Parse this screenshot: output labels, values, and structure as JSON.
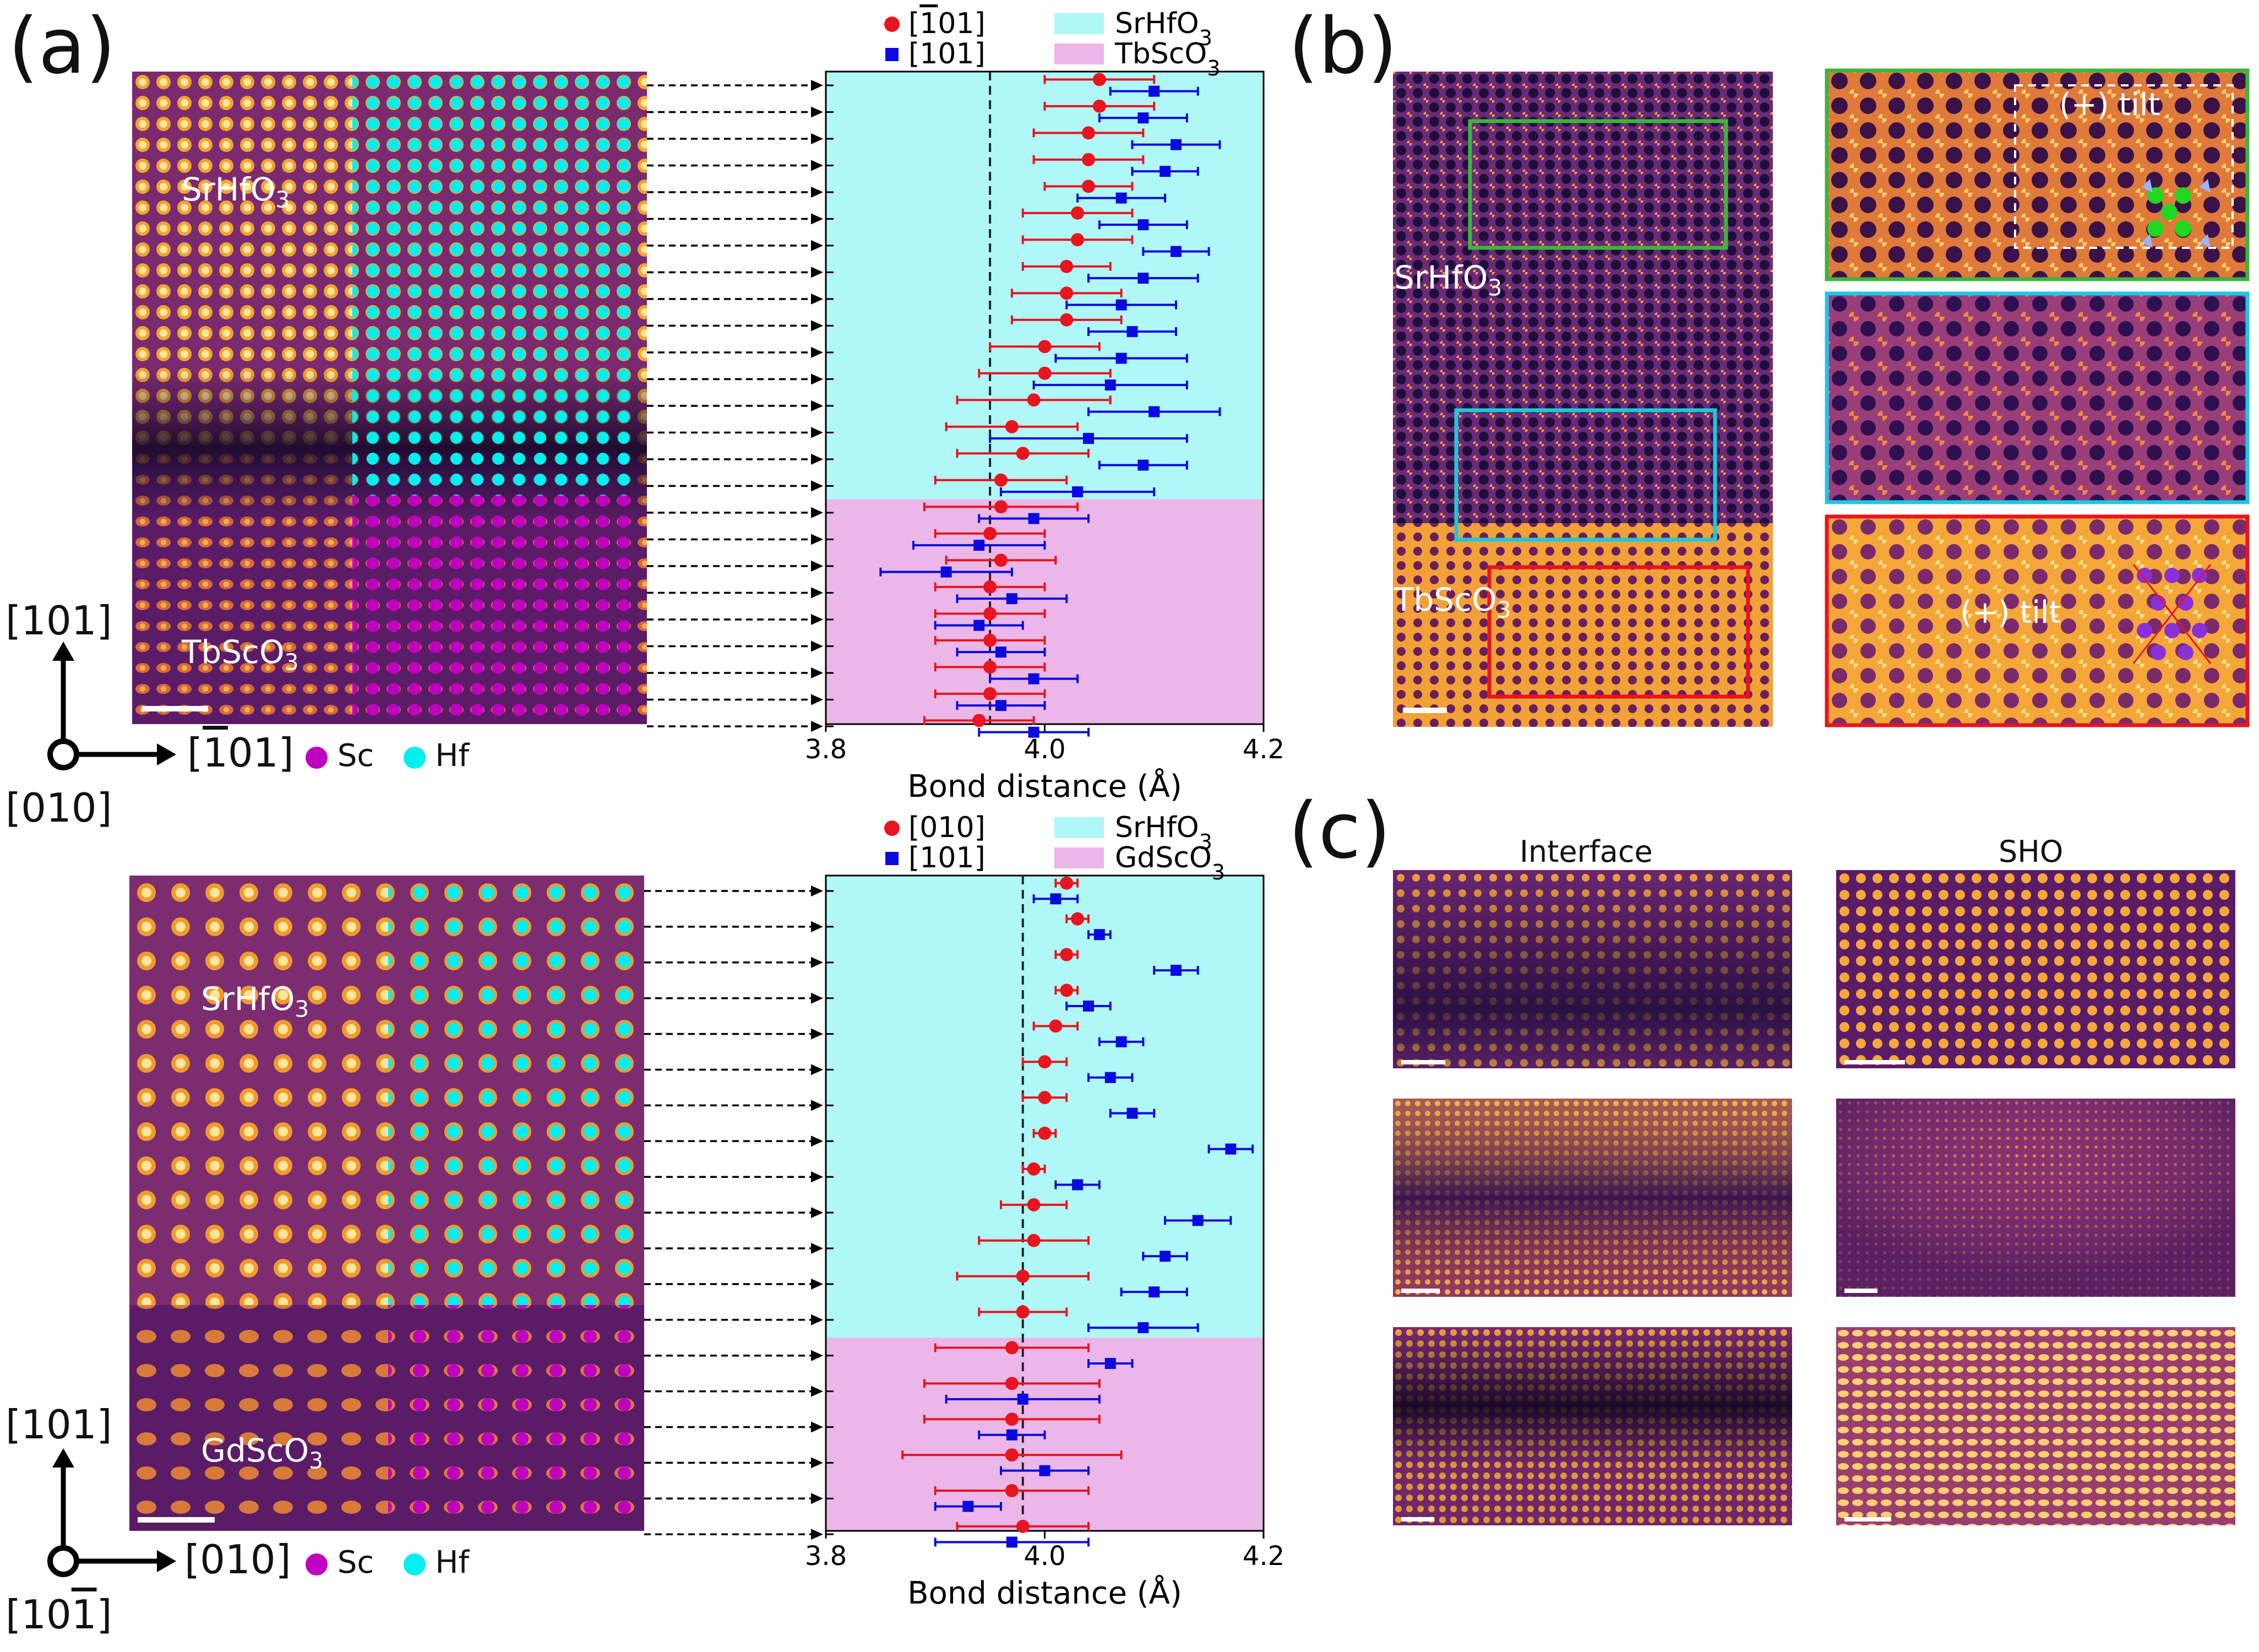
{
  "panels": {
    "a": "(a)",
    "b": "(b)",
    "c": "(c)"
  },
  "top": {
    "img_labels": {
      "film": "SrHfO3",
      "substrate": "TbScO3"
    },
    "axes": {
      "vertical": "[101]",
      "horizontal": "[-101]",
      "out_of_plane": "[010]"
    },
    "atom_legend": {
      "sc": "Sc",
      "hf": "Hf",
      "sc_color": "#c000c0",
      "hf_color": "#00f0f0"
    }
  },
  "bottom": {
    "img_labels": {
      "film": "SrHfO3",
      "substrate": "GdScO3"
    },
    "axes": {
      "vertical": "[101]",
      "horizontal": "[010]",
      "out_of_plane": "[10-1]"
    },
    "atom_legend": {
      "sc": "Sc",
      "hf": "Hf"
    }
  },
  "chart_data": [
    {
      "type": "scatter",
      "title": "",
      "xlabel": "Bond distance (Å)",
      "ylabel": "",
      "xlim": [
        3.8,
        4.2
      ],
      "xticks": [
        "3.8",
        "4.0",
        "4.2"
      ],
      "reference_line_x": 3.95,
      "legend": [
        {
          "label": "[-101]",
          "color": "#e8141e",
          "marker": "circle"
        },
        {
          "label": "[101]",
          "color": "#0a0ae0",
          "marker": "square"
        },
        {
          "label": "SrHfO3",
          "color": "#b0f7f7",
          "marker": "band"
        },
        {
          "label": "TbScO3",
          "color": "#ebb7e9",
          "marker": "band"
        }
      ],
      "bands": [
        {
          "label": "SrHfO3",
          "rows": [
            0,
            15
          ],
          "color": "#b0f7f7"
        },
        {
          "label": "TbScO3",
          "rows": [
            16,
            24
          ],
          "color": "#ebb7e9"
        }
      ],
      "series": [
        {
          "name": "[-101]",
          "color": "#e8141e",
          "values": [
            4.05,
            4.05,
            4.04,
            4.04,
            4.04,
            4.03,
            4.03,
            4.02,
            4.02,
            4.02,
            4.0,
            4.0,
            3.99,
            3.97,
            3.98,
            3.96,
            3.96,
            3.95,
            3.96,
            3.95,
            3.95,
            3.95,
            3.95,
            3.95,
            3.94
          ],
          "errors": [
            0.05,
            0.05,
            0.05,
            0.05,
            0.04,
            0.05,
            0.05,
            0.04,
            0.05,
            0.05,
            0.05,
            0.06,
            0.07,
            0.06,
            0.06,
            0.06,
            0.07,
            0.05,
            0.05,
            0.05,
            0.05,
            0.05,
            0.05,
            0.05,
            0.05
          ]
        },
        {
          "name": "[101]",
          "color": "#0a0ae0",
          "values": [
            4.1,
            4.09,
            4.12,
            4.11,
            4.07,
            4.09,
            4.12,
            4.09,
            4.07,
            4.08,
            4.07,
            4.06,
            4.1,
            4.04,
            4.09,
            4.03,
            3.99,
            3.94,
            3.91,
            3.97,
            3.94,
            3.96,
            3.99,
            3.96,
            3.99
          ],
          "errors": [
            0.04,
            0.04,
            0.04,
            0.03,
            0.04,
            0.04,
            0.03,
            0.05,
            0.05,
            0.04,
            0.06,
            0.07,
            0.06,
            0.09,
            0.04,
            0.07,
            0.05,
            0.06,
            0.06,
            0.05,
            0.04,
            0.04,
            0.04,
            0.04,
            0.05
          ]
        }
      ]
    },
    {
      "type": "scatter",
      "title": "",
      "xlabel": "Bond distance (Å)",
      "ylabel": "",
      "xlim": [
        3.8,
        4.2
      ],
      "xticks": [
        "3.8",
        "4.0",
        "4.2"
      ],
      "reference_line_x": 3.98,
      "legend": [
        {
          "label": "[010]",
          "color": "#e8141e",
          "marker": "circle"
        },
        {
          "label": "[101]",
          "color": "#0a0ae0",
          "marker": "square"
        },
        {
          "label": "SrHfO3",
          "color": "#b0f7f7",
          "marker": "band"
        },
        {
          "label": "GdScO3",
          "color": "#ebb7e9",
          "marker": "band"
        }
      ],
      "bands": [
        {
          "label": "SrHfO3",
          "rows": [
            0,
            12
          ],
          "color": "#b0f7f7"
        },
        {
          "label": "GdScO3",
          "rows": [
            13,
            18
          ],
          "color": "#ebb7e9"
        }
      ],
      "series": [
        {
          "name": "[010]",
          "color": "#e8141e",
          "values": [
            4.02,
            4.03,
            4.02,
            4.02,
            4.01,
            4.0,
            4.0,
            4.0,
            3.99,
            3.99,
            3.99,
            3.98,
            3.98,
            3.97,
            3.97,
            3.97,
            3.97,
            3.97,
            3.98
          ],
          "errors": [
            0.01,
            0.01,
            0.01,
            0.01,
            0.02,
            0.02,
            0.02,
            0.01,
            0.01,
            0.03,
            0.05,
            0.06,
            0.04,
            0.07,
            0.08,
            0.08,
            0.1,
            0.07,
            0.06
          ]
        },
        {
          "name": "[101]",
          "color": "#0a0ae0",
          "values": [
            4.01,
            4.05,
            4.12,
            4.04,
            4.07,
            4.06,
            4.08,
            4.17,
            4.03,
            4.14,
            4.11,
            4.1,
            4.09,
            4.06,
            3.98,
            3.97,
            4.0,
            3.93,
            3.97
          ],
          "errors": [
            0.02,
            0.01,
            0.02,
            0.02,
            0.02,
            0.02,
            0.02,
            0.02,
            0.02,
            0.03,
            0.02,
            0.03,
            0.05,
            0.02,
            0.07,
            0.03,
            0.04,
            0.03,
            0.07
          ]
        }
      ]
    }
  ],
  "b": {
    "film": "SrHfO3",
    "substrate": "TbScO3",
    "tilt_top": "(+) tilt",
    "tilt_bottom": "(+) tilt"
  },
  "c": {
    "col_left": "Interface",
    "col_right": "SHO"
  }
}
